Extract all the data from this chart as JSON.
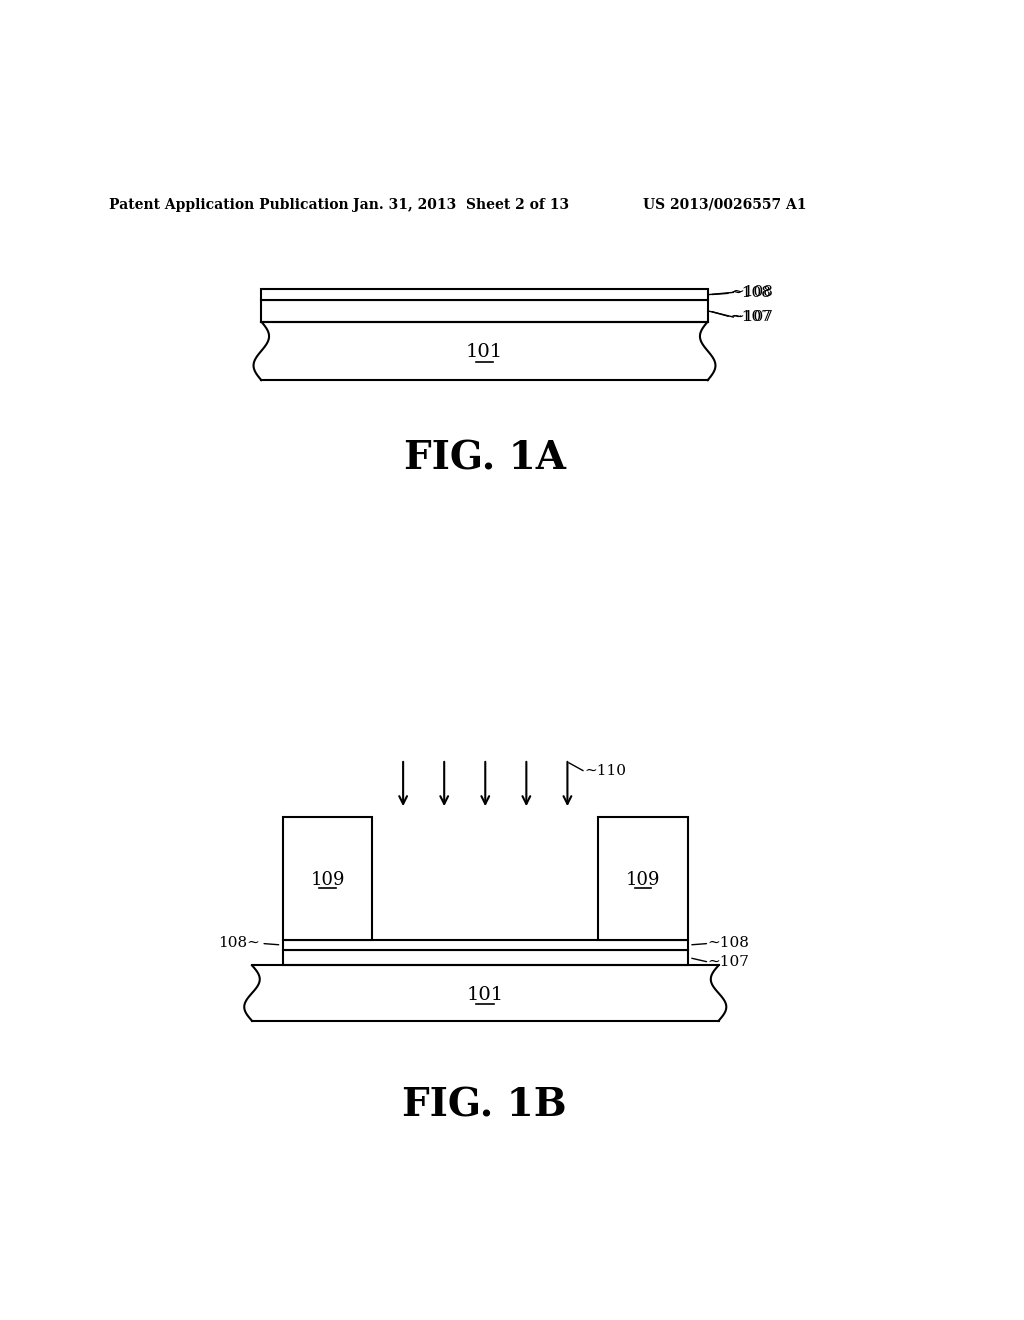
{
  "bg_color": "#ffffff",
  "line_color": "#000000",
  "header_left": "Patent Application Publication",
  "header_mid": "Jan. 31, 2013  Sheet 2 of 13",
  "header_right": "US 2013/0026557 A1",
  "fig1a_label": "FIG. 1A",
  "fig1b_label": "FIG. 1B",
  "label_101a": "101",
  "label_107a": "107",
  "label_108a": "108",
  "label_101b": "101",
  "label_107b": "107",
  "label_108b": "108",
  "label_109L": "109",
  "label_109R": "109",
  "label_110": "110"
}
